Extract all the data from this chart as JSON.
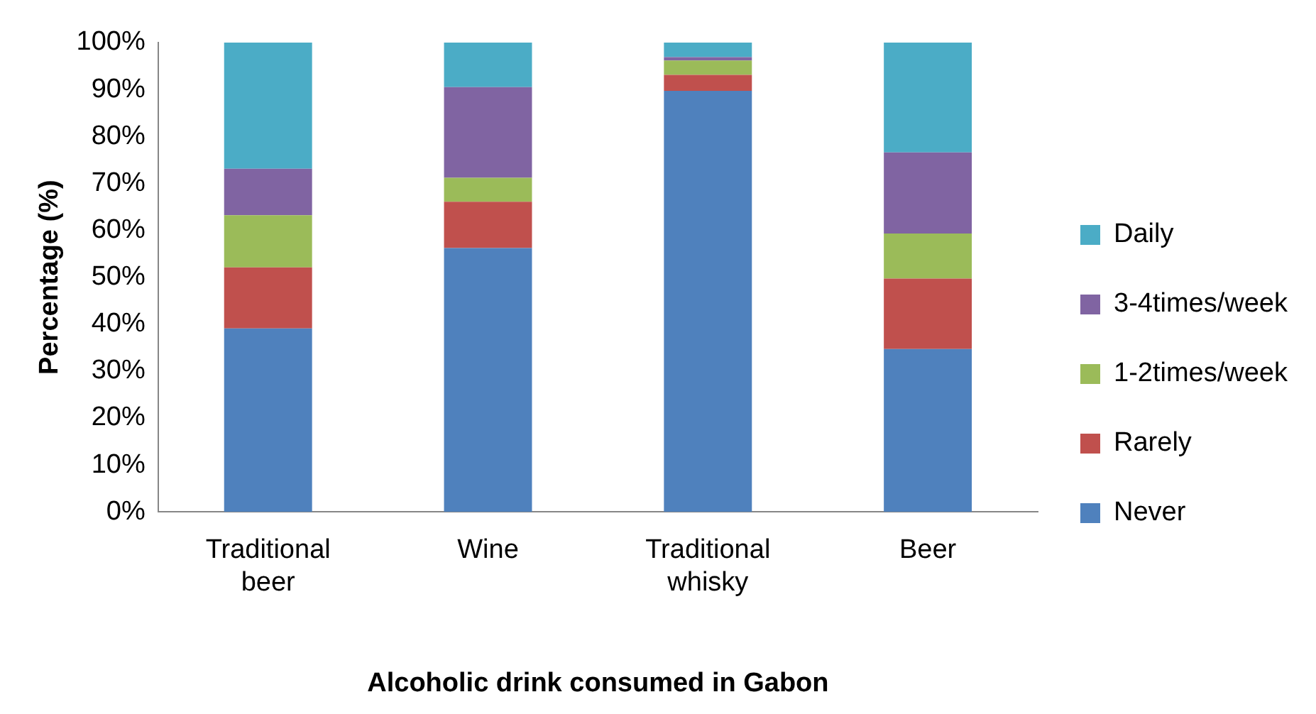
{
  "chart_data": {
    "type": "bar",
    "stacked": true,
    "categories": [
      "Traditional beer",
      "Wine",
      "Traditional whisky",
      "Beer"
    ],
    "series": [
      {
        "name": "Never",
        "color": "#4f81bd",
        "values": [
          39.1,
          56.2,
          89.7,
          34.7
        ]
      },
      {
        "name": "Rarely",
        "color": "#c0504d",
        "values": [
          13.0,
          9.9,
          3.4,
          15.0
        ]
      },
      {
        "name": "1-2times/week",
        "color": "#9bbb59",
        "values": [
          11.1,
          5.1,
          3.1,
          9.6
        ]
      },
      {
        "name": "3-4times/week",
        "color": "#8064a2",
        "values": [
          9.9,
          19.3,
          0.7,
          17.3
        ]
      },
      {
        "name": "Daily",
        "color": "#4bacc6",
        "values": [
          26.9,
          9.5,
          3.1,
          23.4
        ]
      }
    ],
    "ylim": [
      0,
      100
    ],
    "yticks": [
      {
        "value": 0,
        "label": "0%"
      },
      {
        "value": 10,
        "label": "10%"
      },
      {
        "value": 20,
        "label": "20%"
      },
      {
        "value": 30,
        "label": "30%"
      },
      {
        "value": 40,
        "label": "40%"
      },
      {
        "value": 50,
        "label": "50%"
      },
      {
        "value": 60,
        "label": "60%"
      },
      {
        "value": 70,
        "label": "70%"
      },
      {
        "value": 80,
        "label": "80%"
      },
      {
        "value": 90,
        "label": "90%"
      },
      {
        "value": 100,
        "label": "100%"
      }
    ],
    "xlabel": "Alcoholic drink consumed in Gabon",
    "ylabel": "Percentage (%)",
    "grid": false,
    "legend": "right"
  }
}
